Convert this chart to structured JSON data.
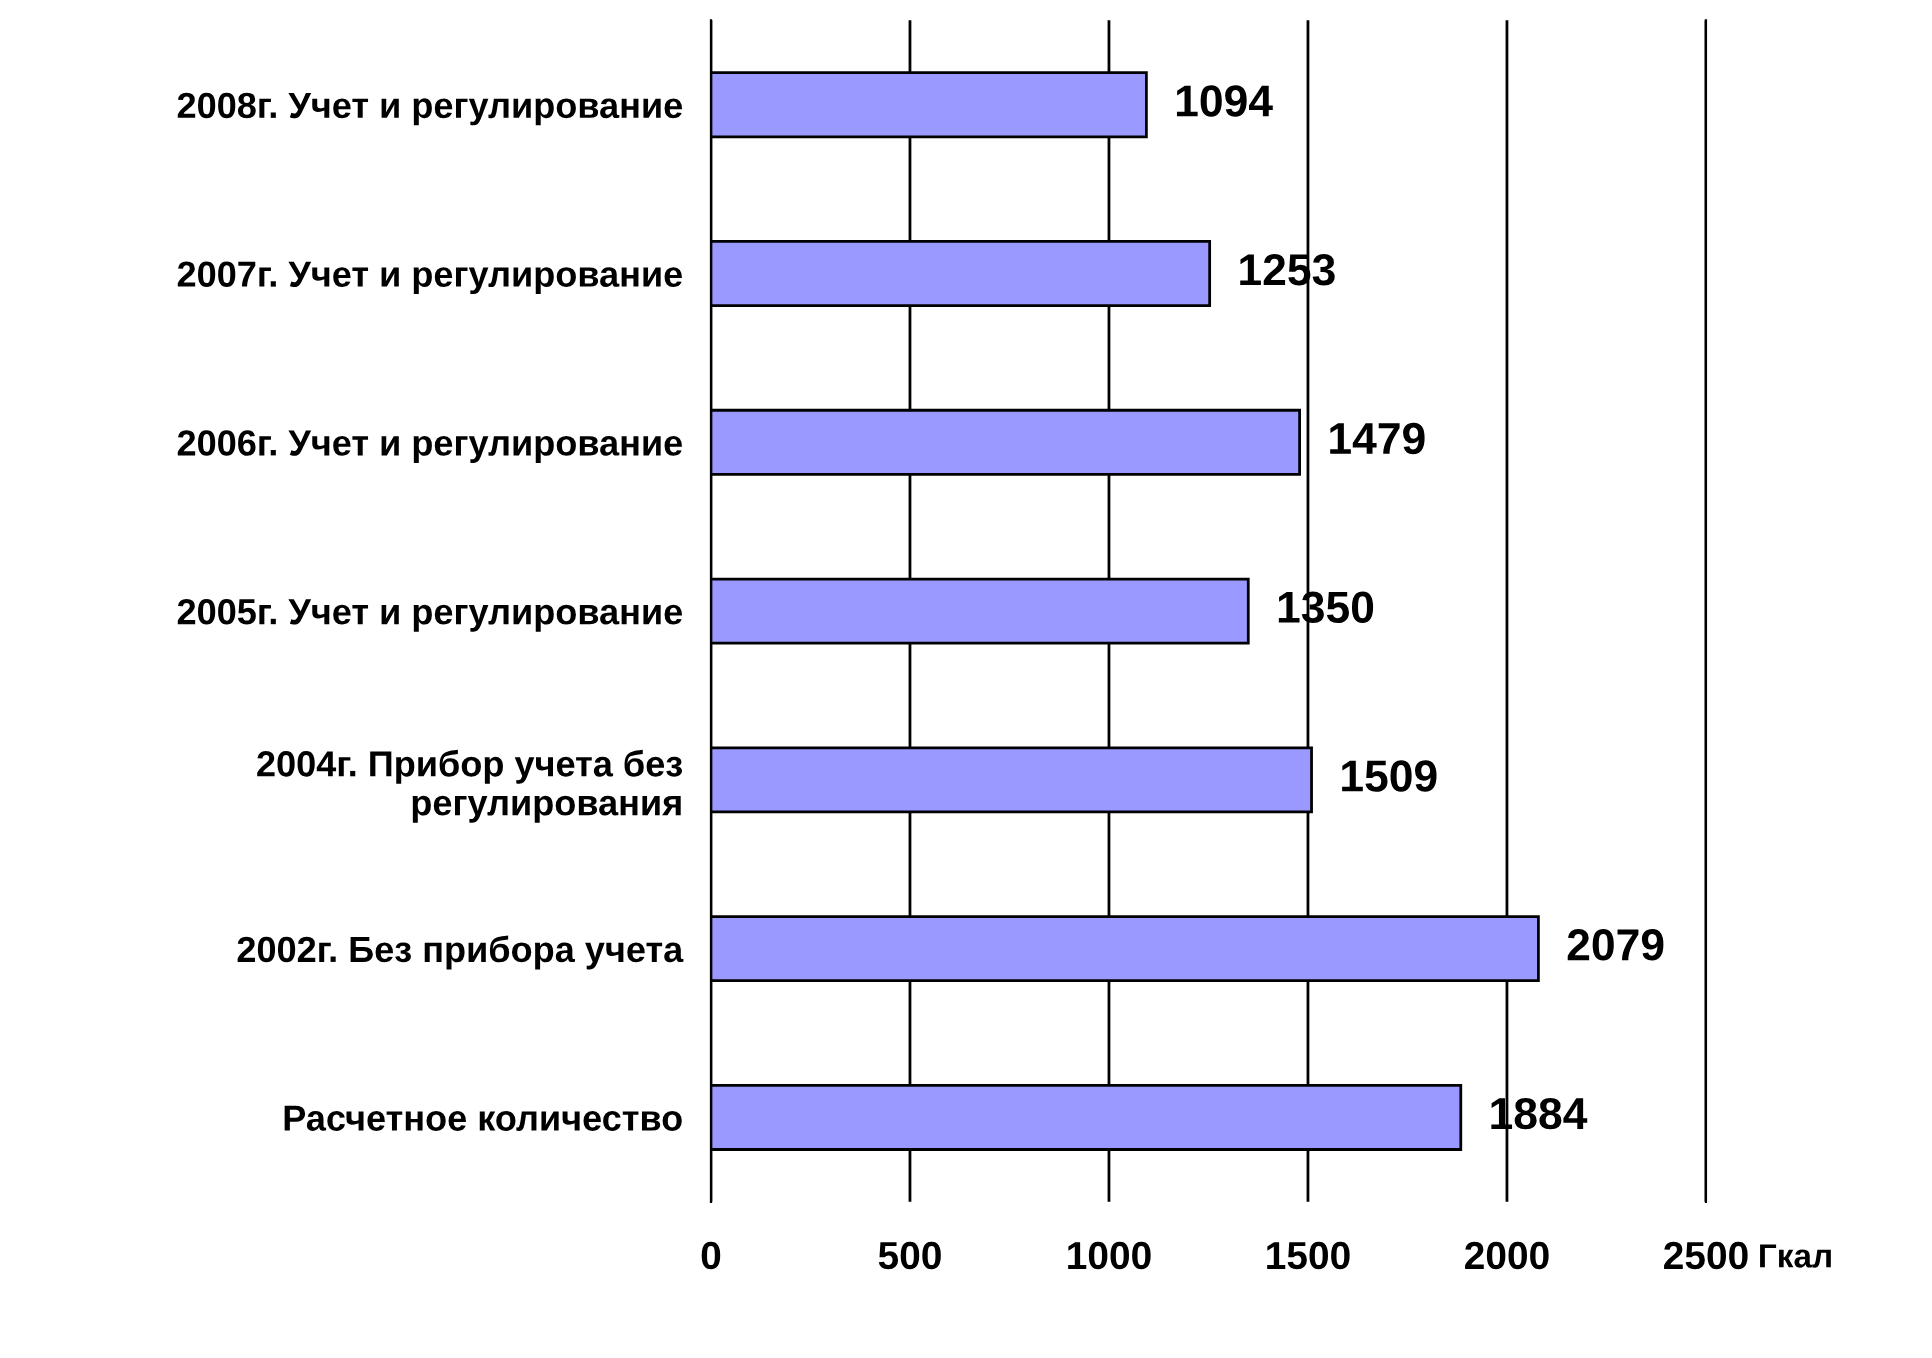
{
  "chart_data": {
    "type": "bar",
    "orientation": "horizontal",
    "categories": [
      "2008г. Учет и регулирование",
      "2007г. Учет и регулирование",
      "2006г. Учет и регулирование",
      "2005г. Учет и регулирование",
      "2004г. Прибор учета без\nрегулирования",
      "2002г. Без прибора учета",
      "Расчетное количество"
    ],
    "values": [
      1094,
      1253,
      1479,
      1350,
      1509,
      2079,
      1884
    ],
    "color": "#9999ff",
    "xlim": [
      0,
      2500
    ],
    "xticks": [
      0,
      500,
      1000,
      1500,
      2000,
      2500
    ],
    "xlabel": "Гкал",
    "grid": "x",
    "data_labels": true
  }
}
